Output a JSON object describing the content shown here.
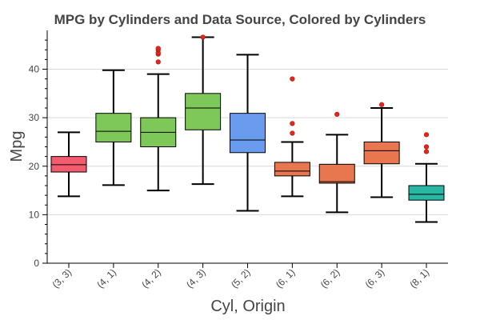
{
  "chart_data": {
    "type": "box",
    "title": "MPG by Cylinders and Data Source, Colored by Cylinders",
    "xlabel": "Cyl, Origin",
    "ylabel": "Mpg",
    "ylim": [
      0,
      48
    ],
    "yticks": [
      0,
      10,
      20,
      30,
      40
    ],
    "grid": "horizontal",
    "categories": [
      "(3, 3)",
      "(4, 1)",
      "(4, 2)",
      "(4, 3)",
      "(5, 2)",
      "(6, 1)",
      "(6, 2)",
      "(6, 3)",
      "(8, 1)"
    ],
    "boxes": [
      {
        "category": "(3, 3)",
        "min": 13.8,
        "q1": 18.8,
        "median": 20.3,
        "q3": 22.0,
        "max": 27.0,
        "outliers": [],
        "color": "#f25c6e"
      },
      {
        "category": "(4, 1)",
        "min": 16.1,
        "q1": 25.0,
        "median": 27.2,
        "q3": 30.9,
        "max": 39.8,
        "outliers": [],
        "color": "#7ec85a"
      },
      {
        "category": "(4, 2)",
        "min": 15.0,
        "q1": 24.0,
        "median": 27.0,
        "q3": 30.0,
        "max": 39.0,
        "outliers": [
          41.5,
          43.1,
          43.4,
          44.0,
          44.3
        ],
        "color": "#7ec85a"
      },
      {
        "category": "(4, 3)",
        "min": 16.3,
        "q1": 27.5,
        "median": 32.0,
        "q3": 35.0,
        "max": 46.6,
        "outliers": [
          46.6
        ],
        "color": "#7ec85a"
      },
      {
        "category": "(5, 2)",
        "min": 10.8,
        "q1": 22.8,
        "median": 25.4,
        "q3": 30.9,
        "max": 43.0,
        "outliers": [],
        "color": "#6a9ced"
      },
      {
        "category": "(6, 1)",
        "min": 13.8,
        "q1": 18.0,
        "median": 19.0,
        "q3": 20.8,
        "max": 25.0,
        "outliers": [
          26.8,
          28.8,
          38.0
        ],
        "color": "#e8774f"
      },
      {
        "category": "(6, 2)",
        "min": 10.5,
        "q1": 16.5,
        "median": 16.8,
        "q3": 20.4,
        "max": 26.5,
        "outliers": [
          30.7
        ],
        "color": "#e8774f"
      },
      {
        "category": "(6, 3)",
        "min": 13.6,
        "q1": 20.5,
        "median": 23.2,
        "q3": 25.0,
        "max": 32.0,
        "outliers": [
          32.7
        ],
        "color": "#e8774f"
      },
      {
        "category": "(8, 1)",
        "min": 8.5,
        "q1": 13.0,
        "median": 14.2,
        "q3": 16.0,
        "max": 20.5,
        "outliers": [
          23.0,
          24.0,
          26.5
        ],
        "color": "#2ab7a4"
      }
    ],
    "outlier_color": "#e8251c"
  }
}
